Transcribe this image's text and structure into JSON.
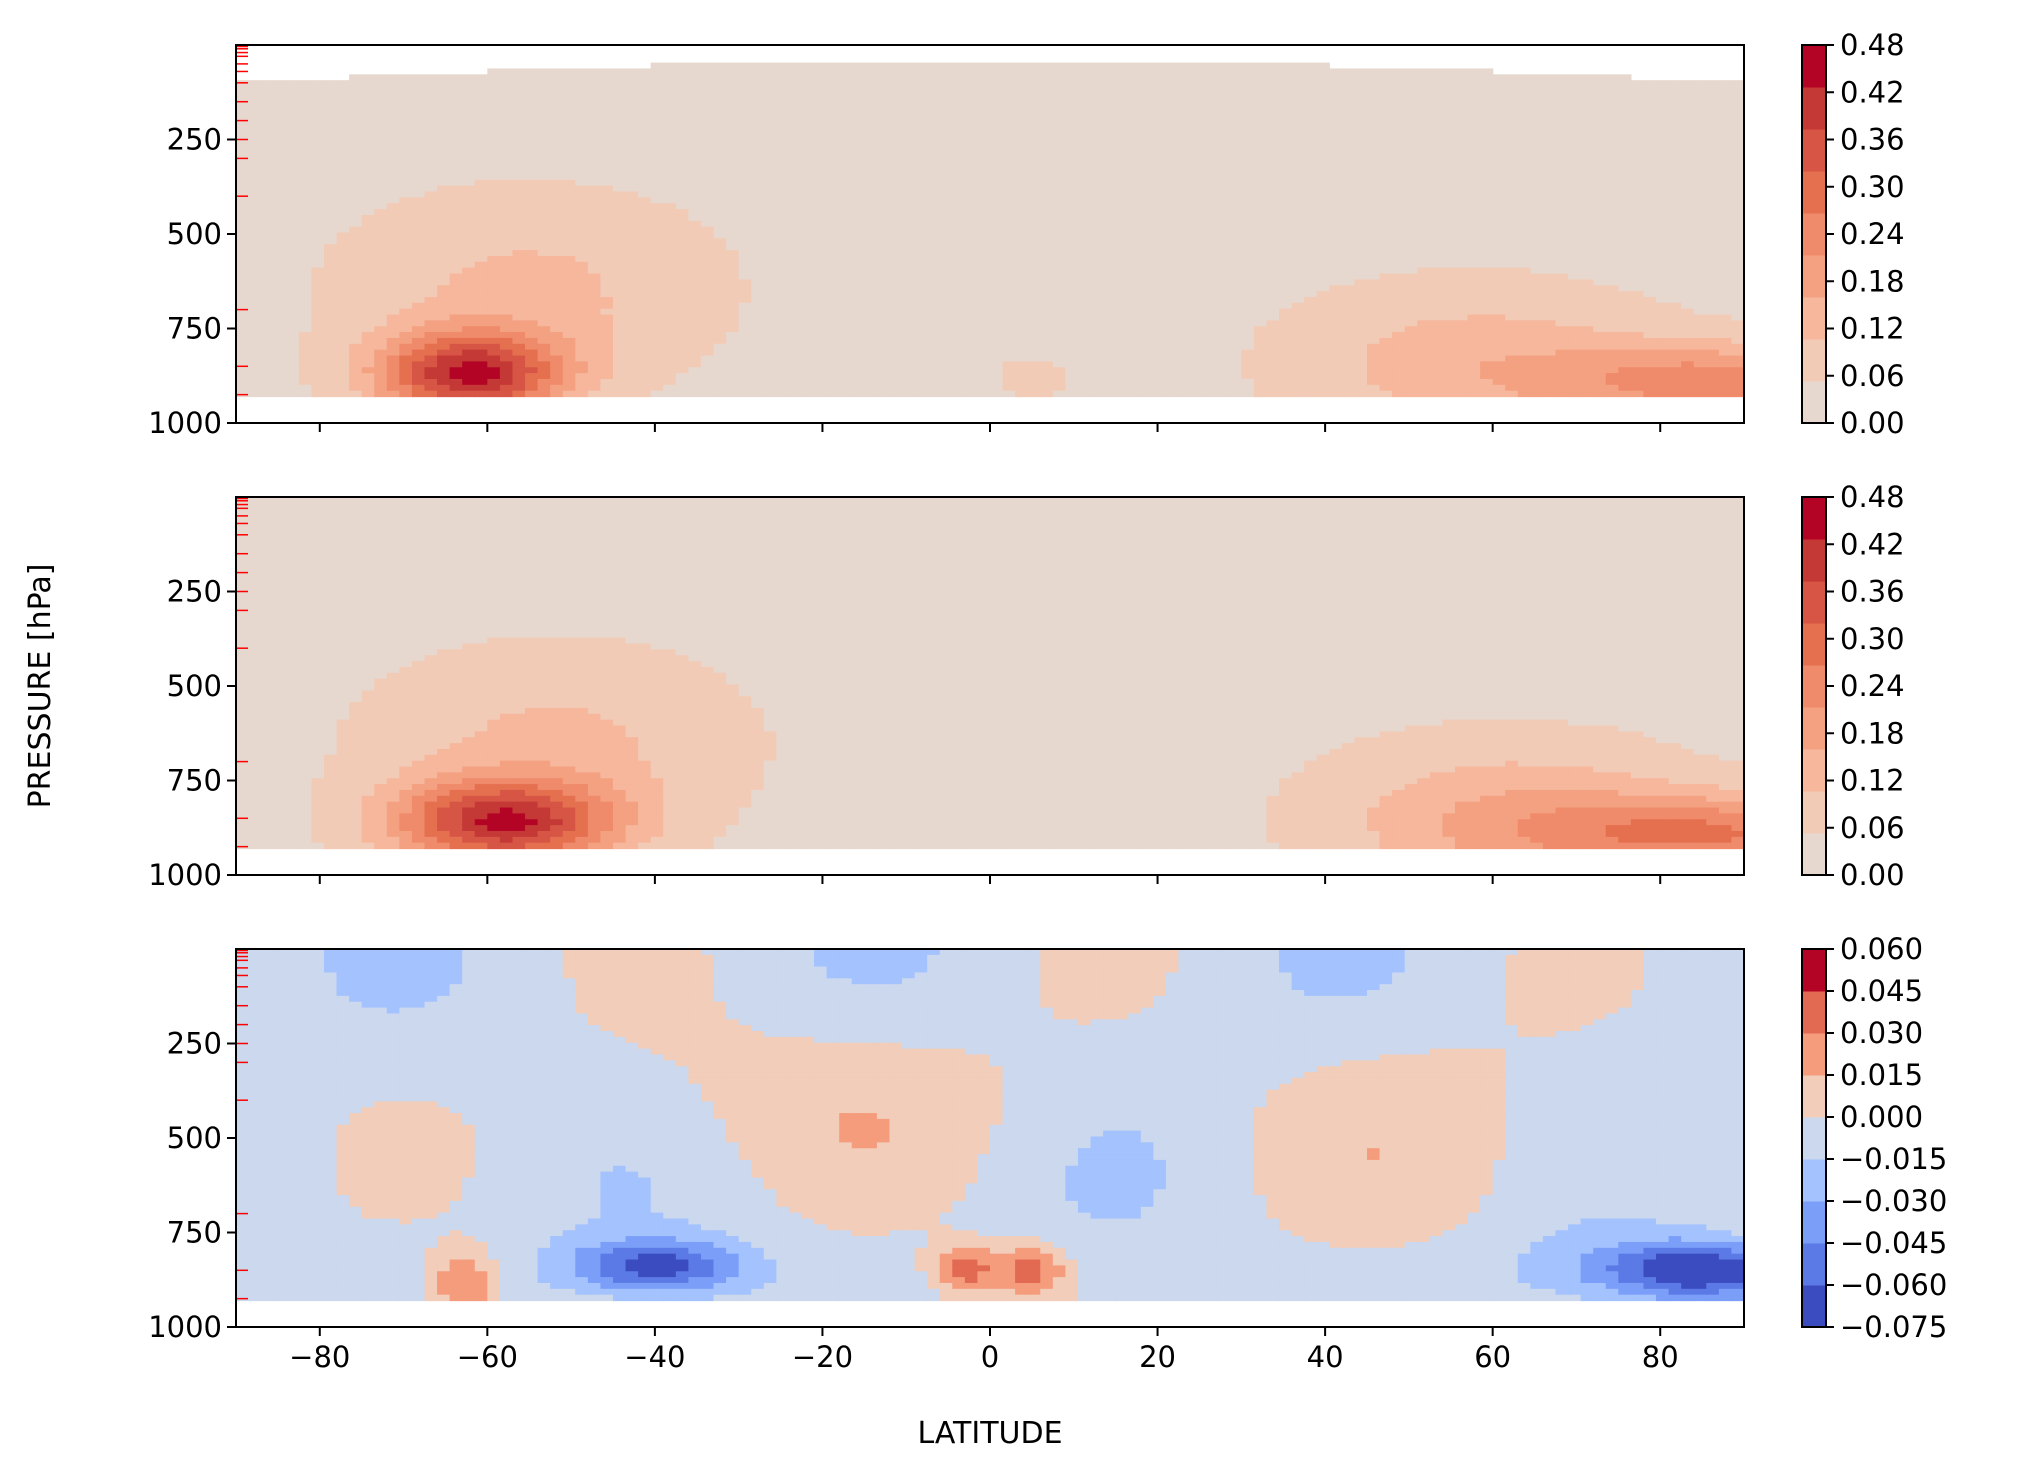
{
  "figure": {
    "ylabel": "PRESSURE [hPa]",
    "xlabel": "LATITUDE"
  },
  "chart_data": [
    {
      "type": "contour",
      "panel": "top",
      "x_ticks": [
        -80,
        -60,
        -40,
        -20,
        0,
        20,
        40,
        60,
        80
      ],
      "xlim": [
        -90,
        90
      ],
      "y_ticks": [
        "250",
        "500",
        "750",
        "1000"
      ],
      "ylim": [
        0,
        1000
      ],
      "colorbar": {
        "ticks": [
          "0.00",
          "0.06",
          "0.12",
          "0.18",
          "0.24",
          "0.30",
          "0.36",
          "0.42",
          "0.48"
        ],
        "levels": [
          0.0,
          0.06,
          0.12,
          0.18,
          0.24,
          0.3,
          0.36,
          0.42,
          0.48
        ],
        "colors": [
          "#e6d8cf",
          "#f2cbb7",
          "#f6b79c",
          "#f4a182",
          "#ef8a6a",
          "#e5704f",
          "#d65544",
          "#c43835",
          "#b40426"
        ]
      },
      "features": [
        {
          "lat": -62,
          "p": 860,
          "max": 0.45,
          "lat_width": 22,
          "p_width": 230
        },
        {
          "lat": 85,
          "p": 880,
          "max": 0.36,
          "lat_width": 32,
          "p_width": 210
        },
        {
          "lat": 55,
          "p": 840,
          "max": 0.22,
          "lat_width": 28,
          "p_width": 250
        }
      ]
    },
    {
      "type": "contour",
      "panel": "middle",
      "x_ticks": [
        -80,
        -60,
        -40,
        -20,
        0,
        20,
        40,
        60,
        80
      ],
      "xlim": [
        -90,
        90
      ],
      "y_ticks": [
        "250",
        "500",
        "750",
        "1000"
      ],
      "ylim": [
        0,
        1000
      ],
      "colorbar": {
        "ticks": [
          "0.00",
          "0.06",
          "0.12",
          "0.18",
          "0.24",
          "0.30",
          "0.36",
          "0.42",
          "0.48"
        ],
        "levels": [
          0.0,
          0.06,
          0.12,
          0.18,
          0.24,
          0.3,
          0.36,
          0.42,
          0.48
        ],
        "colors": [
          "#e6d8cf",
          "#f2cbb7",
          "#f6b79c",
          "#f4a182",
          "#ef8a6a",
          "#e5704f",
          "#d65544",
          "#c43835",
          "#b40426"
        ]
      },
      "features": [
        {
          "lat": -60,
          "p": 860,
          "max": 0.44,
          "lat_width": 24,
          "p_width": 230
        },
        {
          "lat": 85,
          "p": 880,
          "max": 0.36,
          "lat_width": 32,
          "p_width": 210
        },
        {
          "lat": 58,
          "p": 850,
          "max": 0.26,
          "lat_width": 28,
          "p_width": 250
        }
      ]
    },
    {
      "type": "contour",
      "panel": "bottom",
      "x_ticks": [
        -80,
        -60,
        -40,
        -20,
        0,
        20,
        40,
        60,
        80
      ],
      "xlim": [
        -90,
        90
      ],
      "y_ticks": [
        "250",
        "500",
        "750",
        "1000"
      ],
      "ylim": [
        0,
        1000
      ],
      "colorbar": {
        "ticks": [
          "−0.075",
          "−0.060",
          "−0.045",
          "−0.030",
          "−0.015",
          "0.000",
          "0.015",
          "0.030",
          "0.045",
          "0.060"
        ],
        "levels": [
          -0.075,
          -0.06,
          -0.045,
          -0.03,
          -0.015,
          0.0,
          0.015,
          0.03,
          0.045,
          0.06
        ],
        "colors": [
          "#3b4cc0",
          "#5b7ae5",
          "#7b9ff9",
          "#a3c2fe",
          "#cbd8ee",
          "#f1cdba",
          "#f59c7d",
          "#e26952",
          "#b40426"
        ]
      },
      "features": [
        {
          "lat": -40,
          "p": 830,
          "min": -0.065,
          "lat_width": 24,
          "p_width": 140
        },
        {
          "lat": 85,
          "p": 840,
          "min": -0.065,
          "lat_width": 20,
          "p_width": 150
        },
        {
          "lat": 0,
          "p": 840,
          "max": 0.04,
          "lat_width": 14,
          "p_width": 170
        },
        {
          "lat": -63,
          "p": 880,
          "max": 0.04,
          "lat_width": 8,
          "p_width": 180
        }
      ]
    }
  ]
}
